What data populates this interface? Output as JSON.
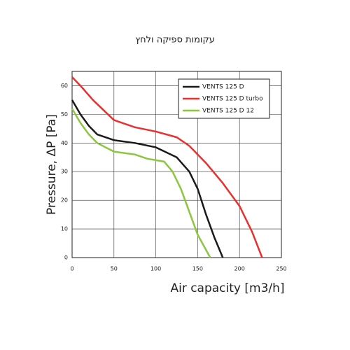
{
  "chart_data": {
    "type": "line",
    "title": "עקומות ספיקה ולחץ",
    "x_label": "Air capacity [m3/h]",
    "y_label": "Pressure, ΔP [Pa]",
    "xlim": [
      0,
      250
    ],
    "ylim": [
      0,
      65
    ],
    "xticks": [
      0,
      50,
      100,
      150,
      200,
      250
    ],
    "yticks": [
      0,
      10,
      20,
      30,
      40,
      50,
      60
    ],
    "grid": true,
    "legend": "upper right",
    "series": [
      {
        "name": "VENTS 125 D",
        "color": "#1a1a1a",
        "x": [
          0,
          10,
          20,
          30,
          50,
          75,
          100,
          125,
          140,
          150,
          160,
          170,
          180
        ],
        "values": [
          55,
          50,
          46,
          43,
          41,
          40,
          38.5,
          35,
          30,
          24,
          15,
          7,
          0
        ]
      },
      {
        "name": "VENTS 125 D turbo",
        "color": "#e8312f",
        "x": [
          0,
          10,
          25,
          50,
          75,
          100,
          125,
          140,
          160,
          180,
          200,
          215,
          227
        ],
        "values": [
          63,
          60,
          55,
          48,
          45.5,
          44,
          42,
          39,
          33,
          26,
          18,
          9,
          0
        ]
      },
      {
        "name": "VENTS 125 D 12",
        "color": "#8cc63f",
        "x": [
          0,
          10,
          20,
          30,
          50,
          75,
          90,
          110,
          120,
          130,
          140,
          150,
          165
        ],
        "values": [
          52,
          47,
          43,
          40,
          37,
          36,
          34.5,
          33.5,
          30,
          24,
          16,
          8,
          0
        ]
      }
    ]
  }
}
